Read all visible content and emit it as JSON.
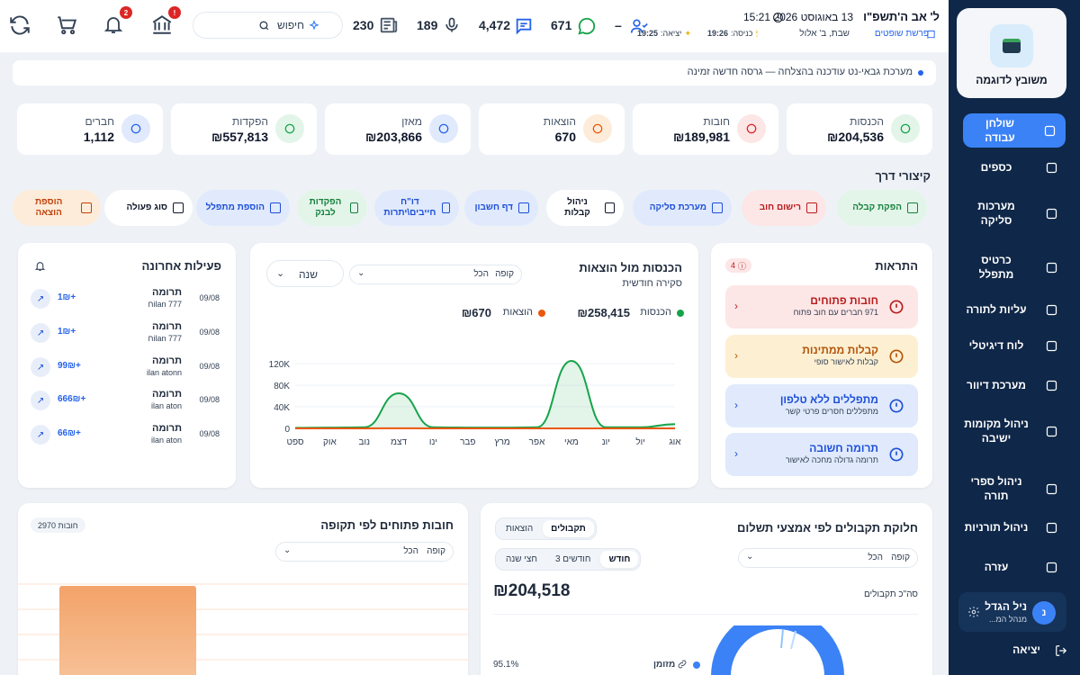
{
  "sidebar": {
    "brand": "משובץ לדוגמה",
    "items": [
      {
        "label": "שולחן עבודה",
        "icon": "dashboard-icon",
        "active": true
      },
      {
        "label": "כספים",
        "icon": "money-icon"
      },
      {
        "label": "מערכות סליקה",
        "icon": "bank-icon"
      },
      {
        "label": "כרטיס מתפלל",
        "icon": "id-card-icon"
      },
      {
        "label": "עליות לתורה",
        "icon": "book-list-icon"
      },
      {
        "label": "לוח דיגיטלי",
        "icon": "display-icon"
      },
      {
        "label": "מערכת דיוור",
        "icon": "mail-icon"
      },
      {
        "label": "ניהול מקומות ישיבה",
        "icon": "seat-icon"
      },
      {
        "label": "ניהול ספרי תורה",
        "icon": "torah-icon"
      },
      {
        "label": "ניהול תורניות",
        "icon": "schedule-icon"
      },
      {
        "label": "עזרה",
        "icon": "help-icon"
      }
    ],
    "user": {
      "initial": "נ",
      "name": "ניל הגדל",
      "role": "מנהל המ..."
    },
    "logout": "יציאה"
  },
  "topbar": {
    "hebrew_date": "ל' אב ה'תשפ\"ו",
    "greg_date": "13 באוגוסט 2026",
    "time": "15:21",
    "parasha": "פרשת שופטים",
    "day": "שבת, ב' אלול",
    "entry_label": "כניסה:",
    "entry_time": "19:26",
    "exit_label": "יציאה:",
    "exit_time": "19:25",
    "members_count": "–",
    "messages_count": "671",
    "chat_count": "4,472",
    "mic_count": "189",
    "news_count": "230",
    "search_placeholder": "חיפוש",
    "badge_bank": "!",
    "badge_bell": "2"
  },
  "notice": "מערכת גבאי-נט עודכנה בהצלחה — גרסה חדשה זמינה",
  "stats": [
    {
      "title": "הכנסות",
      "value": "₪204,536",
      "icon": "trend-up-icon",
      "color": "#16a34a",
      "bg": "#e3f5e9"
    },
    {
      "title": "חובות",
      "value": "₪189,981",
      "icon": "alert-circle-icon",
      "color": "#dc2626",
      "bg": "#fde6e6"
    },
    {
      "title": "הוצאות",
      "value": "670",
      "icon": "receipt-icon",
      "color": "#ea580c",
      "bg": "#fdecd9"
    },
    {
      "title": "מאזן",
      "value": "₪203,866",
      "icon": "dollar-icon",
      "color": "#2563eb",
      "bg": "#e0eafc"
    },
    {
      "title": "הפקדות",
      "value": "₪557,813",
      "icon": "cash-icon",
      "color": "#16a34a",
      "bg": "#e3f5e9"
    },
    {
      "title": "חברים",
      "value": "1,112",
      "icon": "users-icon",
      "color": "#2563eb",
      "bg": "#e0eafc"
    }
  ],
  "shortcuts_title": "קיצורי דרך",
  "shortcuts": [
    {
      "label": "הפקת קבלה",
      "bg": "#e3f5e9",
      "color": "#15803d"
    },
    {
      "label": "רישום חוב",
      "bg": "#fde6e6",
      "color": "#b91c1c"
    },
    {
      "label": "מערכת סליקה",
      "bg": "#e0eafc",
      "color": "#1d4ed8"
    },
    {
      "label": "ניהול קבלות",
      "bg": "#ffffff",
      "color": "#0f172a"
    },
    {
      "label": "דף חשבון",
      "bg": "#e0eafc",
      "color": "#1d4ed8"
    },
    {
      "label": "דו\"ח חייבים\\יתרות",
      "bg": "#e0eafc",
      "color": "#1d4ed8"
    },
    {
      "label": "הפקדות לבנק",
      "bg": "#e3f5e9",
      "color": "#15803d"
    },
    {
      "label": "הוספת מתפלל",
      "bg": "#e0eafc",
      "color": "#1d4ed8"
    },
    {
      "label": "סוג פעולה",
      "bg": "#ffffff",
      "color": "#0f172a"
    },
    {
      "label": "הוספת הוצאה",
      "bg": "#fdecd9",
      "color": "#c2410c"
    }
  ],
  "alerts": {
    "title": "התראות",
    "count": "4",
    "items": [
      {
        "title": "חובות פתוחים",
        "sub": "971 חברים עם חוב פתוח",
        "bg": "#fde6e6",
        "color": "#b91c1c"
      },
      {
        "title": "קבלות ממתינות",
        "sub": "קבלות לאישור סופי",
        "bg": "#fdf0d2",
        "color": "#b45309"
      },
      {
        "title": "מתפללים ללא טלפון",
        "sub": "מתפללים חסרים פרטי קשר",
        "bg": "#e0eafc",
        "color": "#1d4ed8"
      },
      {
        "title": "תרומה חשובה",
        "sub": "תרומה גדולה מחכה לאישור",
        "bg": "#e0eafc",
        "color": "#1d4ed8"
      }
    ]
  },
  "income_chart": {
    "title": "הכנסות מול הוצאות",
    "subtitle": "סקירה חודשית",
    "filter_label": "קופה",
    "filter_value": "הכל",
    "period": "שנה",
    "income_label": "הכנסות",
    "income_total": "₪258,415",
    "expense_label": "הוצאות",
    "expense_total": "₪670"
  },
  "chart_data": {
    "type": "area",
    "categories": [
      "אוג",
      "יול",
      "יונ",
      "מאי",
      "אפר",
      "מרץ",
      "פבר",
      "ינו",
      "דצמ",
      "נוב",
      "אוק",
      "ספט"
    ],
    "yticks": [
      "0",
      "40K",
      "80K",
      "120K"
    ],
    "ylim": [
      0,
      130000
    ],
    "series": [
      {
        "name": "הכנסות",
        "color": "#16a34a",
        "values": [
          8000,
          2000,
          2000,
          125000,
          2000,
          1500,
          1500,
          2000,
          65000,
          2000,
          1500,
          1000
        ]
      },
      {
        "name": "הוצאות",
        "color": "#ea580c",
        "values": [
          100,
          100,
          100,
          100,
          100,
          100,
          100,
          100,
          200,
          100,
          100,
          100
        ]
      }
    ]
  },
  "activity": {
    "title": "פעילות אחרונה",
    "rows": [
      {
        "name": "תרומה",
        "sub": "ilan 777ח",
        "date": "09/08",
        "amount": "+1₪"
      },
      {
        "name": "תרומה",
        "sub": "ilan 777ח",
        "date": "09/08",
        "amount": "+1₪"
      },
      {
        "name": "תרומה",
        "sub": "ilan atonn",
        "date": "09/08",
        "amount": "+99₪"
      },
      {
        "name": "תרומה",
        "sub": "ilan aton",
        "date": "09/08",
        "amount": "+666₪"
      },
      {
        "name": "תרומה",
        "sub": "ilan aton",
        "date": "09/08",
        "amount": "+66₪"
      }
    ]
  },
  "payments": {
    "title": "חלוקת תקבולים לפי אמצעי תשלום",
    "tabs": [
      "תקבולים",
      "הוצאות"
    ],
    "periods": [
      "חודש",
      "3 חודשים",
      "חצי שנה"
    ],
    "filter_label": "קופה",
    "filter_value": "הכל",
    "total_label": "סה\"כ תקבולים",
    "total_value": "₪204,518",
    "legend_label": "מזומן",
    "legend_pct": "95.1%"
  },
  "debts": {
    "title": "חובות פתוחים לפי תקופה",
    "count": "2970 חובות",
    "filter_label": "קופה",
    "filter_value": "הכל"
  }
}
